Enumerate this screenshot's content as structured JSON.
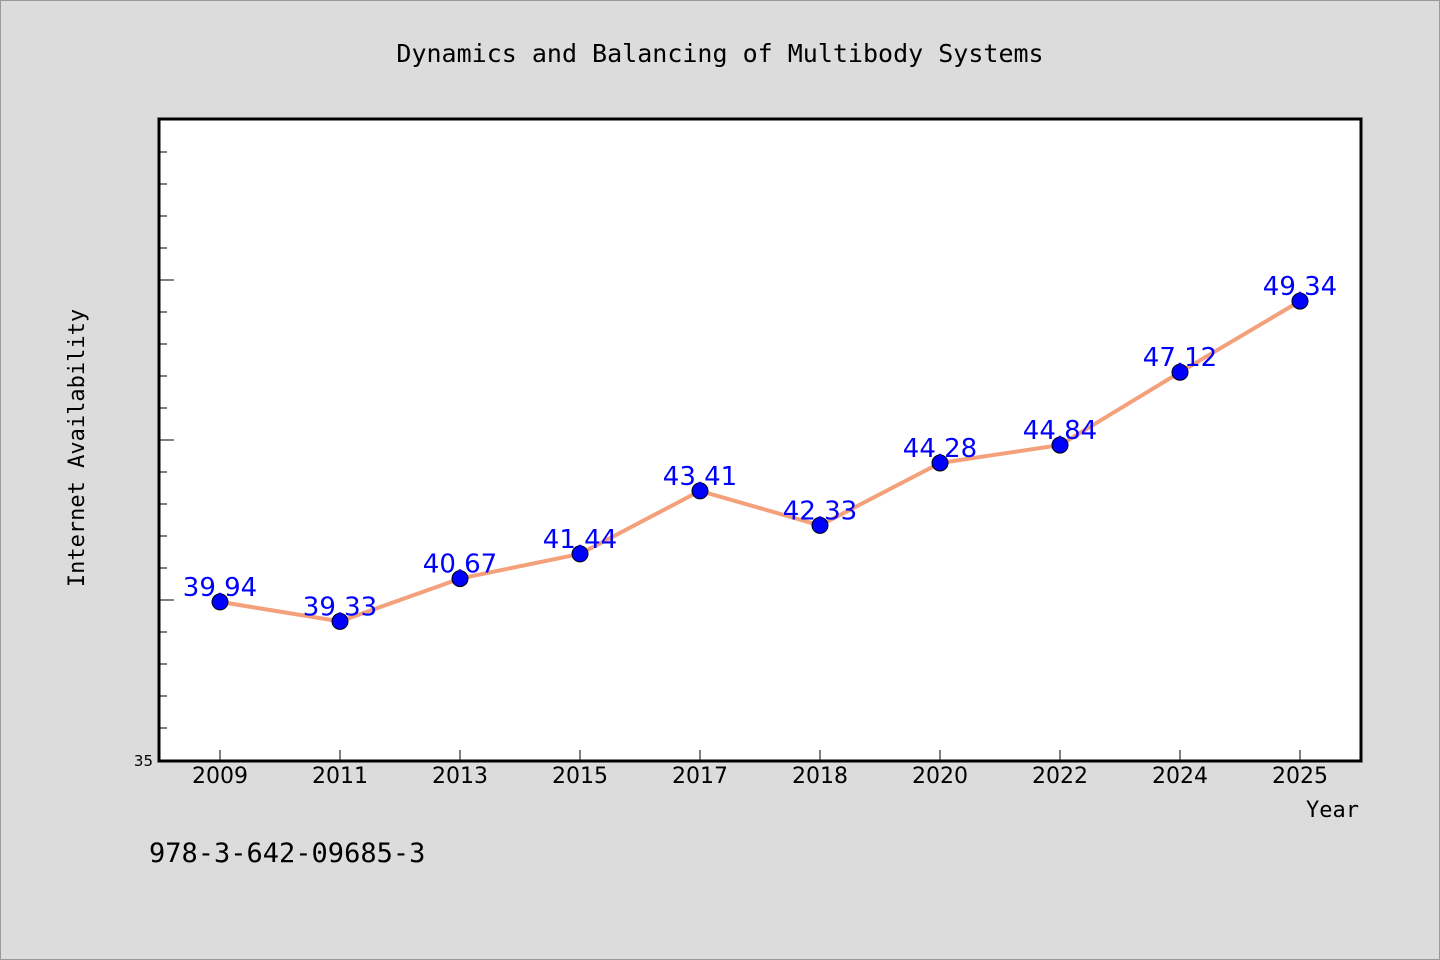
{
  "chart_data": {
    "type": "line",
    "title": "Dynamics and Balancing of Multibody Systems",
    "xlabel": "Year",
    "ylabel": "Internet Availability",
    "categories": [
      "2009",
      "2011",
      "2013",
      "2015",
      "2017",
      "2018",
      "2020",
      "2022",
      "2024",
      "2025"
    ],
    "values": [
      39.94,
      39.33,
      40.67,
      41.44,
      43.41,
      42.33,
      44.28,
      44.84,
      47.12,
      49.34
    ],
    "value_labels": [
      "39.94",
      "39.33",
      "40.67",
      "41.44",
      "43.41",
      "42.33",
      "44.28",
      "44.84",
      "47.12",
      "49.34"
    ],
    "ylim": [
      35,
      55
    ],
    "y_tick_labels": [
      "35"
    ],
    "grid": false,
    "line_color": "#f4a07a",
    "marker_color": "#0000ff",
    "label_color": "#0000ff"
  },
  "footer": {
    "isbn": "978-3-642-09685-3"
  },
  "colors": {
    "background": "#dcdcdc",
    "plot_background": "#ffffff",
    "axis": "#000000"
  }
}
